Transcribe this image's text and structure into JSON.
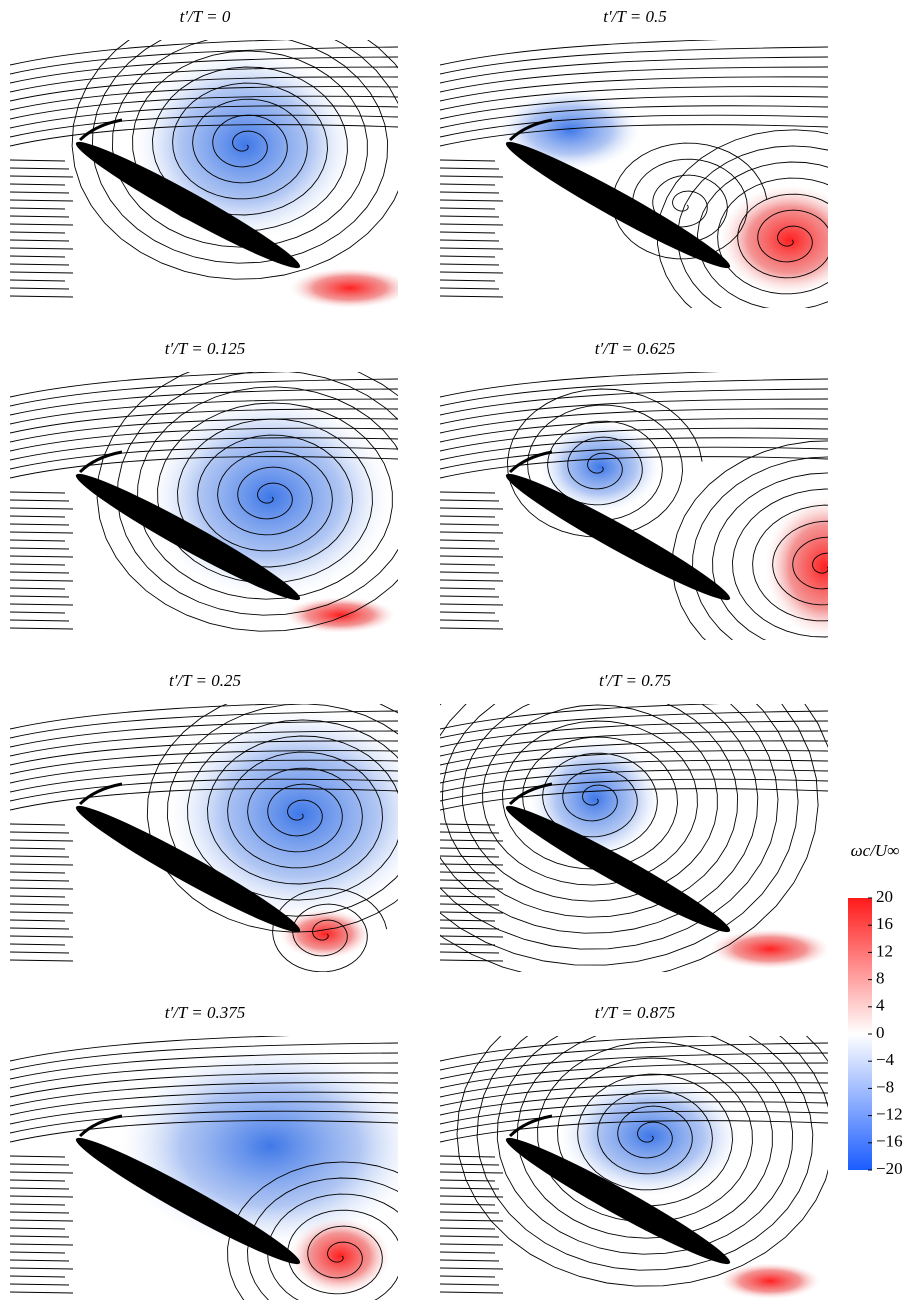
{
  "panels": [
    {
      "title": "t′/T = 0"
    },
    {
      "title": "t′/T = 0.125"
    },
    {
      "title": "t′/T = 0.25"
    },
    {
      "title": "t′/T = 0.375"
    },
    {
      "title": "t′/T = 0.5"
    },
    {
      "title": "t′/T = 0.625"
    },
    {
      "title": "t′/T = 0.75"
    },
    {
      "title": "t′/T = 0.875"
    }
  ],
  "colorbar": {
    "label": "ωc/U∞",
    "ticks": [
      20,
      16,
      12,
      8,
      4,
      0,
      {
        "value": -4,
        "label": "−4"
      },
      {
        "value": -8,
        "label": "−8"
      },
      {
        "value": -12,
        "label": "−12"
      },
      {
        "value": -16,
        "label": "−16"
      },
      {
        "value": -20,
        "label": "−20"
      }
    ],
    "range": [
      -20,
      20
    ]
  }
}
